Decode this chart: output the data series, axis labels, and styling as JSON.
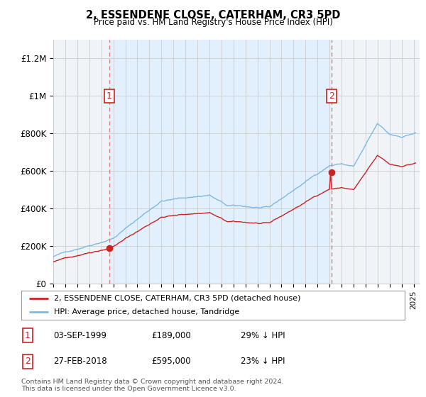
{
  "title": "2, ESSENDENE CLOSE, CATERHAM, CR3 5PD",
  "subtitle": "Price paid vs. HM Land Registry's House Price Index (HPI)",
  "ylabel_ticks": [
    "£0",
    "£200K",
    "£400K",
    "£600K",
    "£800K",
    "£1M",
    "£1.2M"
  ],
  "ytick_values": [
    0,
    200000,
    400000,
    600000,
    800000,
    1000000,
    1200000
  ],
  "ylim": [
    0,
    1300000
  ],
  "xlim_start": 1995.0,
  "xlim_end": 2025.5,
  "sale1_year": 1999.67,
  "sale1_price": 189000,
  "sale2_year": 2018.16,
  "sale2_price": 595000,
  "hpi_color": "#7cb9e8",
  "sale_color": "#cc2222",
  "vline_color": "#e08080",
  "grid_color": "#cccccc",
  "bg_color": "#f0f4f8",
  "shade_color": "#ddeeff",
  "legend_label_red": "2, ESSENDENE CLOSE, CATERHAM, CR3 5PD (detached house)",
  "legend_label_blue": "HPI: Average price, detached house, Tandridge",
  "footer": "Contains HM Land Registry data © Crown copyright and database right 2024.\nThis data is licensed under the Open Government Licence v3.0."
}
